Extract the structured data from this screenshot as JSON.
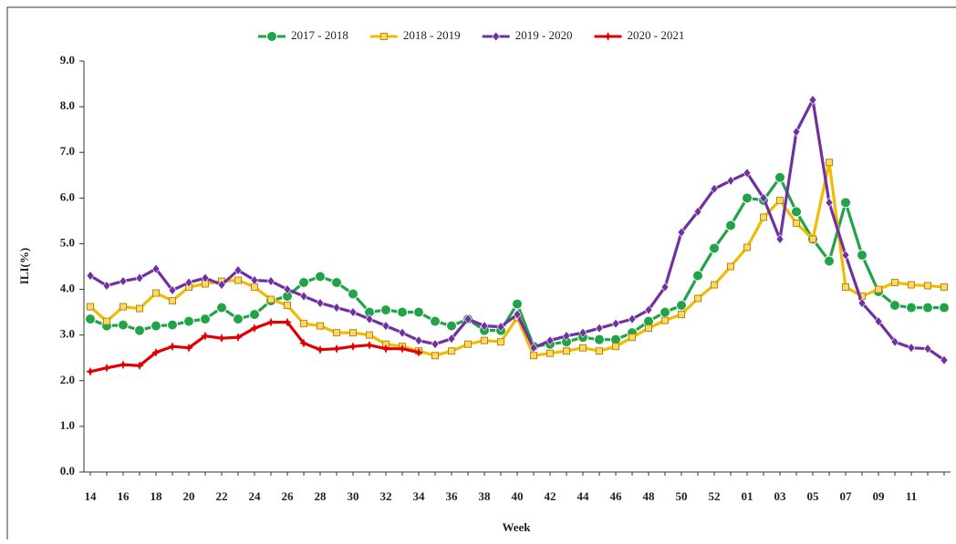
{
  "chart_data": {
    "type": "line",
    "x_label": "Week",
    "y_label": "ILI(%)",
    "categories": [
      "14",
      null,
      "16",
      null,
      "18",
      null,
      "20",
      null,
      "22",
      null,
      "24",
      null,
      "26",
      null,
      "28",
      null,
      "30",
      null,
      "32",
      null,
      "34",
      null,
      "36",
      null,
      "38",
      null,
      "40",
      null,
      "42",
      null,
      "44",
      null,
      "46",
      null,
      "48",
      null,
      "50",
      null,
      "52",
      null,
      "01",
      null,
      "03",
      null,
      "05",
      null,
      "07",
      null,
      "09",
      null,
      "11",
      null,
      null
    ],
    "ylim": [
      0,
      9
    ],
    "yticks": [
      {
        "value": 0,
        "label": "0.0"
      },
      {
        "value": 1,
        "label": "1.0"
      },
      {
        "value": 2,
        "label": "2.0"
      },
      {
        "value": 3,
        "label": "3.0"
      },
      {
        "value": 4,
        "label": "4.0"
      },
      {
        "value": 5,
        "label": "5.0"
      },
      {
        "value": 6,
        "label": "6.0"
      },
      {
        "value": 7,
        "label": "7.0"
      },
      {
        "value": 8,
        "label": "8.0"
      },
      {
        "value": 9,
        "label": "9.0"
      }
    ],
    "grid": false,
    "legend": "top",
    "series": [
      {
        "name": "2017 - 2018",
        "color": "#22a34a",
        "marker": "circle",
        "values": [
          3.35,
          3.2,
          3.22,
          3.1,
          3.2,
          3.22,
          3.3,
          3.35,
          3.6,
          3.35,
          3.45,
          3.75,
          3.85,
          4.15,
          4.28,
          4.15,
          3.9,
          3.5,
          3.55,
          3.5,
          3.5,
          3.3,
          3.2,
          3.35,
          3.1,
          3.1,
          3.68,
          2.75,
          2.8,
          2.85,
          2.95,
          2.9,
          2.9,
          3.05,
          3.3,
          3.5,
          3.65,
          4.3,
          4.9,
          5.4,
          6.0,
          5.95,
          6.45,
          5.7,
          5.1,
          4.62,
          5.9,
          4.75,
          3.95,
          3.65,
          3.6,
          3.6,
          3.6
        ]
      },
      {
        "name": "2018 - 2019",
        "color": "#f3bb00",
        "marker": "square",
        "values": [
          3.62,
          3.3,
          3.62,
          3.58,
          3.92,
          3.75,
          4.05,
          4.12,
          4.18,
          4.2,
          4.05,
          3.78,
          3.65,
          3.25,
          3.2,
          3.05,
          3.05,
          3.0,
          2.8,
          2.75,
          2.65,
          2.55,
          2.65,
          2.8,
          2.88,
          2.85,
          3.38,
          2.55,
          2.6,
          2.65,
          2.72,
          2.65,
          2.75,
          2.95,
          3.15,
          3.32,
          3.45,
          3.8,
          4.1,
          4.5,
          4.92,
          5.58,
          5.95,
          5.45,
          5.1,
          6.78,
          4.05,
          3.85,
          4.0,
          4.15,
          4.1,
          4.08,
          4.05
        ]
      },
      {
        "name": "2019 - 2020",
        "color": "#7030a0",
        "marker": "diamond",
        "values": [
          4.3,
          4.08,
          4.18,
          4.25,
          4.45,
          3.98,
          4.15,
          4.25,
          4.1,
          4.42,
          4.2,
          4.18,
          4.0,
          3.85,
          3.7,
          3.6,
          3.5,
          3.35,
          3.2,
          3.05,
          2.88,
          2.8,
          2.92,
          3.35,
          3.2,
          3.18,
          3.45,
          2.72,
          2.88,
          2.98,
          3.05,
          3.15,
          3.25,
          3.35,
          3.55,
          4.05,
          5.25,
          5.7,
          6.2,
          6.38,
          6.55,
          6.0,
          5.1,
          7.45,
          8.15,
          5.9,
          4.75,
          3.7,
          3.3,
          2.85,
          2.72,
          2.7,
          2.45
        ]
      },
      {
        "name": "2020 - 2021",
        "color": "#e00000",
        "marker": "star",
        "values": [
          2.2,
          2.28,
          2.35,
          2.33,
          2.62,
          2.75,
          2.72,
          2.98,
          2.93,
          2.95,
          3.15,
          3.28,
          3.28,
          2.82,
          2.68,
          2.7,
          2.75,
          2.78,
          2.7,
          2.7,
          2.62,
          null,
          null,
          null,
          null,
          null,
          null,
          null,
          null,
          null,
          null,
          null,
          null,
          null,
          null,
          null,
          null,
          null,
          null,
          null,
          null,
          null,
          null,
          null,
          null,
          null,
          null,
          null,
          null,
          null,
          null,
          null,
          null
        ]
      }
    ]
  }
}
